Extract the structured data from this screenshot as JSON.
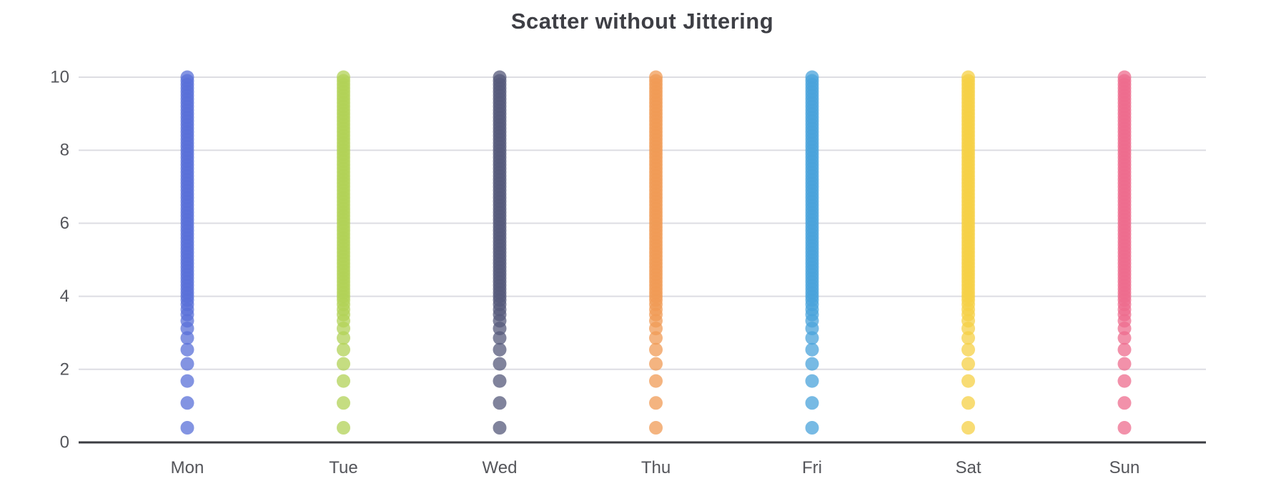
{
  "chart_data": {
    "type": "scatter",
    "title": "Scatter without Jittering",
    "categories": [
      "Mon",
      "Tue",
      "Wed",
      "Thu",
      "Fri",
      "Sat",
      "Sun"
    ],
    "xlabel": "",
    "ylabel": "",
    "ylim": [
      0,
      10
    ],
    "yticks": [
      0,
      2,
      4,
      6,
      8,
      10
    ],
    "ytick_labels": [
      "0",
      "2",
      "4",
      "6",
      "8",
      "10"
    ],
    "grid": "horizontal",
    "legend": "none",
    "marker_opacity": 0.75,
    "marker_radius_px": 9.5,
    "series": [
      {
        "name": "Mon",
        "color": "#5A70D8"
      },
      {
        "name": "Tue",
        "color": "#B1D257"
      },
      {
        "name": "Wed",
        "color": "#55597B"
      },
      {
        "name": "Thu",
        "color": "#F09B55"
      },
      {
        "name": "Fri",
        "color": "#4AA3DB"
      },
      {
        "name": "Sat",
        "color": "#F6D045"
      },
      {
        "name": "Sun",
        "color": "#ED6C8E"
      }
    ],
    "shared_y_values": [
      0.4,
      1.08,
      1.68,
      2.15,
      2.54,
      2.86,
      3.12,
      3.33,
      3.5,
      3.64,
      3.78,
      3.9,
      4.0,
      4.1,
      4.2,
      4.3,
      4.4,
      4.5,
      4.6,
      4.7,
      4.8,
      4.9,
      5.0,
      5.1,
      5.2,
      5.3,
      5.4,
      5.5,
      5.6,
      5.7,
      5.8,
      5.9,
      6.0,
      6.1,
      6.2,
      6.3,
      6.4,
      6.5,
      6.6,
      6.7,
      6.8,
      6.9,
      7.0,
      7.1,
      7.2,
      7.3,
      7.4,
      7.5,
      7.6,
      7.7,
      7.8,
      7.9,
      8.0,
      8.1,
      8.2,
      8.3,
      8.4,
      8.5,
      8.6,
      8.7,
      8.8,
      8.9,
      9.0,
      9.1,
      9.2,
      9.3,
      9.4,
      9.5,
      9.6,
      9.7,
      9.8,
      9.9,
      10.0
    ]
  },
  "colors": {
    "background": "#FFFFFF",
    "title_text": "#3E3F45",
    "tick_text": "#54555A",
    "grid_line": "#DDDDE3",
    "axis_line": "#3B3C42"
  }
}
